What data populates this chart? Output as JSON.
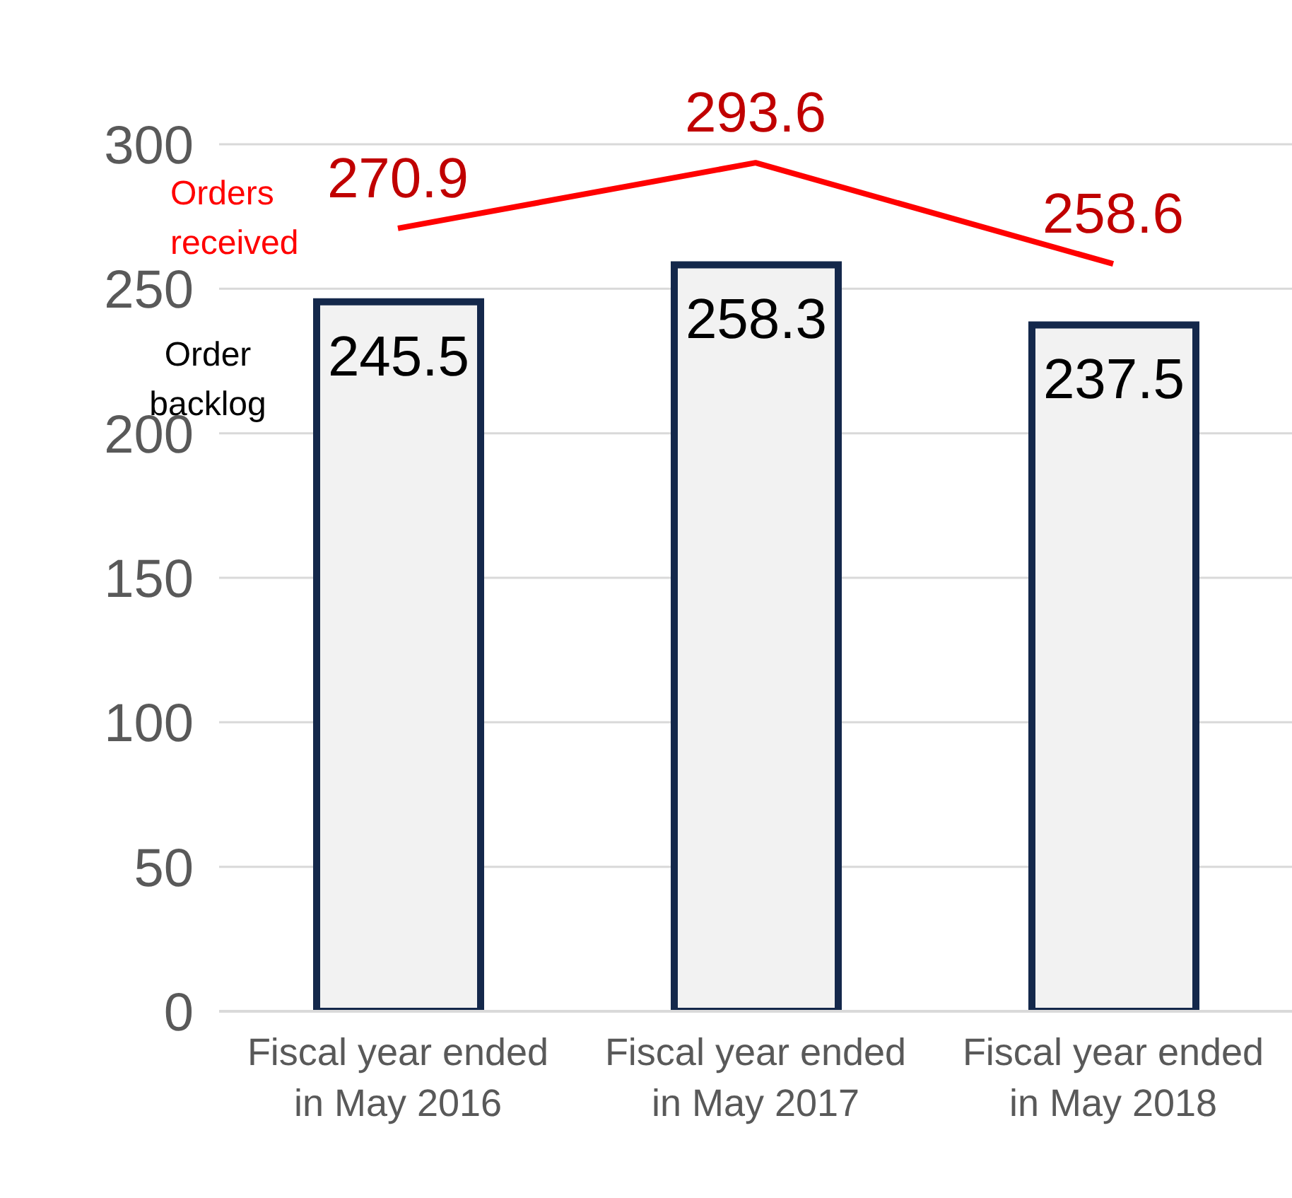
{
  "chart_data": {
    "type": "bar",
    "categories": [
      "Fiscal year ended in May 2016",
      "Fiscal year ended in May 2017",
      "Fiscal year ended in May 2018"
    ],
    "series": [
      {
        "name": "Order backlog",
        "color": "#f2f2f2",
        "values": [
          245.5,
          258.3,
          237.5
        ]
      },
      {
        "name": "Orders received",
        "type": "line",
        "color": "#ff0000",
        "values": [
          270.9,
          293.6,
          258.6
        ]
      }
    ],
    "ylim": [
      0,
      300
    ],
    "yticks": [
      0,
      50,
      100,
      150,
      200,
      250,
      300
    ],
    "grid": "y",
    "legend": false,
    "data_labels": true,
    "marker": "none"
  }
}
